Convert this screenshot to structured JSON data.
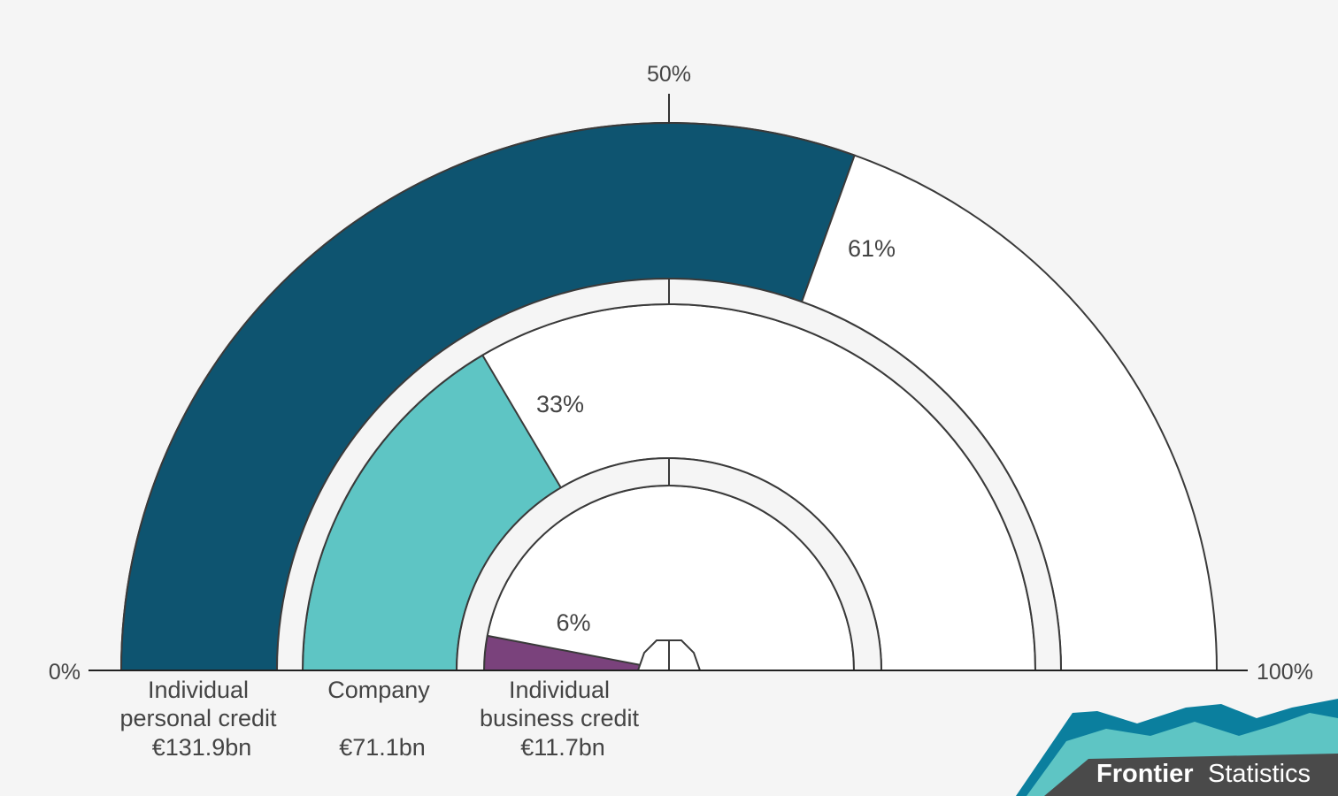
{
  "chart_data": {
    "type": "gauge",
    "scale_min_label": "0%",
    "scale_mid_label": "50%",
    "scale_max_label": "100%",
    "series": [
      {
        "name_line1": "Individual",
        "name_line2": "personal credit",
        "amount": "€131.9bn",
        "percent": 61,
        "percent_label": "61%",
        "color": "#0e5470"
      },
      {
        "name_line1": "Company",
        "name_line2": "",
        "amount": "€71.1bn",
        "percent": 33,
        "percent_label": "33%",
        "color": "#5ec5c4"
      },
      {
        "name_line1": "Individual",
        "name_line2": "business credit",
        "amount": "€11.7bn",
        "percent": 6,
        "percent_label": "6%",
        "color": "#7a427c"
      }
    ]
  },
  "brand": {
    "bold": "Frontier",
    "regular": "Statistics",
    "colors": [
      "#0b7f9e",
      "#5ec5c4",
      "#4a4a4a"
    ]
  },
  "colors": {
    "background": "#f5f5f5",
    "track": "#ffffff",
    "outline": "#3a3a3a"
  }
}
